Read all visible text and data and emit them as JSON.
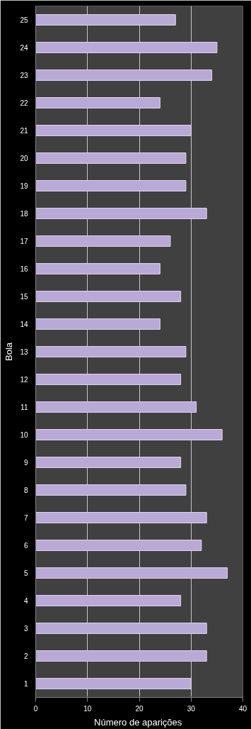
{
  "chart_data": {
    "type": "bar",
    "orientation": "horizontal",
    "xlabel": "Número  de aparições",
    "ylabel": "Bola",
    "categories": [
      "25",
      "24",
      "23",
      "22",
      "21",
      "20",
      "19",
      "18",
      "17",
      "16",
      "15",
      "14",
      "13",
      "12",
      "11",
      "10",
      "9",
      "8",
      "7",
      "6",
      "5",
      "4",
      "3",
      "2",
      "1"
    ],
    "values": [
      27,
      35,
      34,
      24,
      30,
      29,
      29,
      33,
      26,
      24,
      28,
      24,
      29,
      28,
      31,
      36,
      28,
      29,
      33,
      32,
      37,
      28,
      33,
      33,
      30
    ],
    "color": "#b9a9d6",
    "xlim": [
      0,
      40
    ],
    "xticks": [
      0,
      10,
      20,
      30,
      40
    ],
    "grid": "x"
  }
}
